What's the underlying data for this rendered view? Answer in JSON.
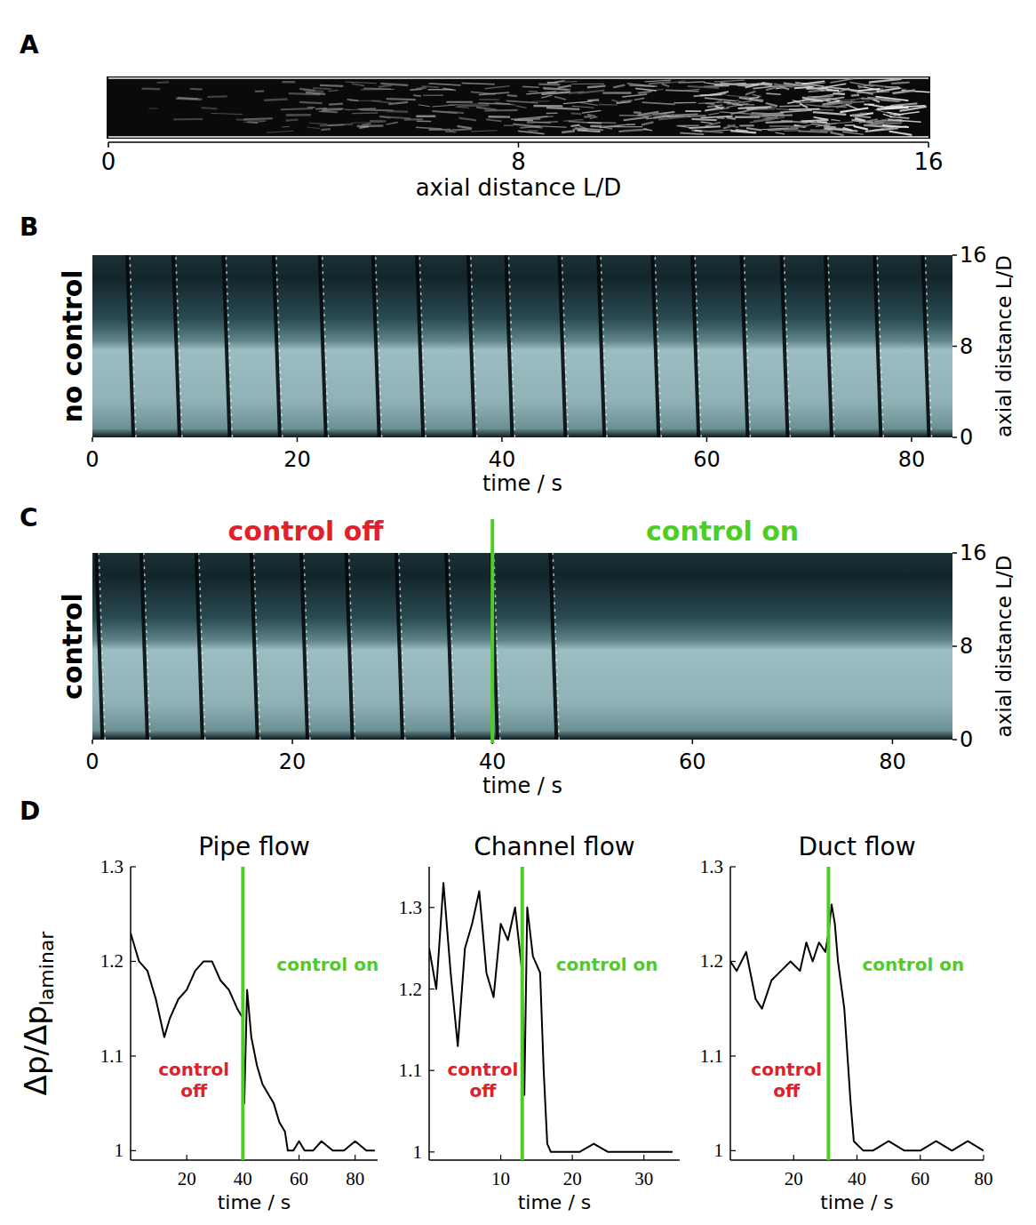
{
  "chart_data": [
    {
      "panel": "A",
      "type": "image",
      "xlabel": "axial distance L/D",
      "xlim": [
        0,
        16
      ],
      "xticks": [
        0,
        8,
        16
      ]
    },
    {
      "panel": "B",
      "type": "space-time",
      "title": "no control",
      "xlabel": "time / s",
      "ylabel": "axial distance L/D",
      "x": [
        4,
        8.5,
        13.4,
        18.3,
        22.8,
        28,
        32.3,
        37.3,
        41,
        46.2,
        50,
        55.3,
        59.2,
        64,
        67.9,
        72.2,
        77,
        81.7
      ],
      "xlim": [
        0,
        84
      ],
      "xticks": [
        0,
        20,
        40,
        60,
        80
      ],
      "ylim": [
        0,
        16
      ],
      "yticks": [
        0,
        8,
        16
      ]
    },
    {
      "panel": "C",
      "type": "space-time",
      "title": "control",
      "control_time": 40,
      "control_off_label": "control off",
      "control_on_label": "control on",
      "xlabel": "time / s",
      "ylabel": "axial distance L/D",
      "x": [
        1,
        5.5,
        11,
        16.5,
        21.5,
        26,
        31,
        36,
        40.5,
        46.4
      ],
      "xlim": [
        0,
        86
      ],
      "xticks": [
        0,
        20,
        40,
        60,
        80
      ],
      "ylim": [
        0,
        16
      ],
      "yticks": [
        0,
        8,
        16
      ]
    },
    {
      "panel": "D",
      "type": "line",
      "title": "Pipe flow",
      "ylabel": "Δp/Δp",
      "ylabel_subscript": "laminar",
      "xlabel": "time / s",
      "control_time": 40,
      "control_off_label": "control off",
      "control_on_label": "control on",
      "color": "#000000",
      "x": [
        0,
        3,
        6,
        9,
        12,
        14,
        17,
        20,
        23,
        26,
        29,
        32,
        35,
        38,
        40,
        40.5,
        41.5,
        43,
        45,
        47,
        49,
        51,
        53,
        55,
        56,
        58,
        60,
        62,
        65,
        68,
        72,
        76,
        80,
        84,
        87
      ],
      "values": [
        1.23,
        1.2,
        1.19,
        1.16,
        1.12,
        1.14,
        1.16,
        1.17,
        1.19,
        1.2,
        1.2,
        1.18,
        1.17,
        1.15,
        1.14,
        1.05,
        1.17,
        1.12,
        1.09,
        1.07,
        1.06,
        1.05,
        1.03,
        1.02,
        1.0,
        1.0,
        1.01,
        1.0,
        1.0,
        1.01,
        1.0,
        1.0,
        1.01,
        1.0,
        1.0
      ],
      "xlim": [
        0,
        88
      ],
      "xticks": [
        20,
        40,
        60,
        80
      ],
      "ylim": [
        0.99,
        1.3
      ],
      "yticks": [
        1,
        1.1,
        1.2,
        1.3
      ]
    },
    {
      "type": "line",
      "title": "Channel flow",
      "xlabel": "time / s",
      "control_time": 13,
      "control_off_label": "control off",
      "control_on_label": "control on",
      "color": "#000000",
      "x": [
        0,
        1,
        2,
        3,
        4,
        5,
        6,
        7,
        8,
        9,
        10,
        11,
        12,
        13,
        13.3,
        13.7,
        14.5,
        15.5,
        16,
        16.5,
        17,
        19,
        21,
        23,
        25,
        28,
        31,
        34
      ],
      "values": [
        1.25,
        1.2,
        1.33,
        1.22,
        1.13,
        1.25,
        1.28,
        1.32,
        1.22,
        1.19,
        1.28,
        1.26,
        1.3,
        1.22,
        1.07,
        1.3,
        1.24,
        1.22,
        1.1,
        1.01,
        1.0,
        1.0,
        1.0,
        1.01,
        1.0,
        1.0,
        1.0,
        1.0
      ],
      "xlim": [
        0,
        35
      ],
      "xticks": [
        10,
        20,
        30
      ],
      "ylim": [
        0.99,
        1.35
      ],
      "yticks": [
        1,
        1.1,
        1.2,
        1.3
      ]
    },
    {
      "type": "line",
      "title": "Duct flow",
      "xlabel": "time / s",
      "control_time": 31,
      "control_off_label": "control off",
      "control_on_label": "control on",
      "color": "#000000",
      "x": [
        0,
        2,
        5,
        8,
        10,
        13,
        16,
        19,
        22,
        24,
        26,
        28,
        30,
        31,
        32,
        33,
        34,
        36,
        38,
        39,
        42,
        45,
        50,
        55,
        60,
        65,
        70,
        75,
        80
      ],
      "values": [
        1.2,
        1.19,
        1.21,
        1.16,
        1.15,
        1.18,
        1.19,
        1.2,
        1.19,
        1.22,
        1.2,
        1.22,
        1.21,
        1.23,
        1.26,
        1.24,
        1.2,
        1.15,
        1.05,
        1.01,
        1.0,
        1.0,
        1.01,
        1.0,
        1.0,
        1.01,
        1.0,
        1.01,
        1.0
      ],
      "xlim": [
        0,
        80
      ],
      "xticks": [
        20,
        40,
        60,
        80
      ],
      "ylim": [
        0.99,
        1.3
      ],
      "yticks": [
        1,
        1.1,
        1.2,
        1.3
      ]
    }
  ]
}
